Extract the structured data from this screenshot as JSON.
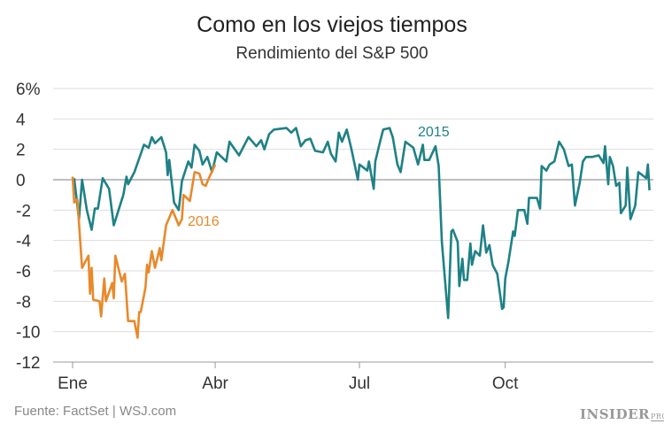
{
  "chart_data": {
    "type": "line",
    "title": "Como en los viejos tiempos",
    "subtitle": "Rendimiento del S&P 500",
    "xlabel": "",
    "ylabel": "",
    "ylim": [
      -12,
      6
    ],
    "yticks": [
      6,
      4,
      2,
      0,
      -2,
      -4,
      -6,
      -8,
      -10,
      -12
    ],
    "ytick_labels": [
      "6%",
      "4",
      "2",
      "0",
      "-2",
      "-4",
      "-6",
      "-8",
      "-10",
      "-12"
    ],
    "xticks": [
      "Ene",
      "Abr",
      "Jul",
      "Oct"
    ],
    "x_axis": "month of year (Jan–Dec)",
    "grid": true,
    "series": [
      {
        "name": "2015",
        "color": "#1e8186",
        "points": [
          [
            "2015-01-02",
            0.1
          ],
          [
            "2015-01-05",
            -2.6
          ],
          [
            "2015-01-07",
            0
          ],
          [
            "2015-01-10",
            -2
          ],
          [
            "2015-01-13",
            -3.3
          ],
          [
            "2015-01-15",
            -1.9
          ],
          [
            "2015-01-17",
            -1.9
          ],
          [
            "2015-01-20",
            0.1
          ],
          [
            "2015-01-24",
            -0.6
          ],
          [
            "2015-01-27",
            -3
          ],
          [
            "2015-01-30",
            -2
          ],
          [
            "2015-02-02",
            -1
          ],
          [
            "2015-02-04",
            0.2
          ],
          [
            "2015-02-05",
            -0.3
          ],
          [
            "2015-02-09",
            0.5
          ],
          [
            "2015-02-12",
            1.4
          ],
          [
            "2015-02-15",
            2.3
          ],
          [
            "2015-02-18",
            2.1
          ],
          [
            "2015-02-20",
            2.8
          ],
          [
            "2015-02-22",
            2.4
          ],
          [
            "2015-02-26",
            2.8
          ],
          [
            "2015-03-01",
            1.8
          ],
          [
            "2015-03-02",
            0.3
          ],
          [
            "2015-03-03",
            1.3
          ],
          [
            "2015-03-06",
            -1.5
          ],
          [
            "2015-03-09",
            -2.0
          ],
          [
            "2015-03-11",
            -0.1
          ],
          [
            "2015-03-15",
            1.2
          ],
          [
            "2015-03-17",
            0.8
          ],
          [
            "2015-03-19",
            2.3
          ],
          [
            "2015-03-22",
            1.9
          ],
          [
            "2015-03-24",
            1.0
          ],
          [
            "2015-03-27",
            1.5
          ],
          [
            "2015-03-30",
            0.5
          ],
          [
            "2015-04-02",
            1.8
          ],
          [
            "2015-04-08",
            1.2
          ],
          [
            "2015-04-10",
            2.5
          ],
          [
            "2015-04-16",
            1.6
          ],
          [
            "2015-04-22",
            2.8
          ],
          [
            "2015-04-27",
            2.2
          ],
          [
            "2015-04-30",
            2.6
          ],
          [
            "2015-05-02",
            2.0
          ],
          [
            "2015-05-05",
            3.0
          ],
          [
            "2015-05-08",
            3.3
          ],
          [
            "2015-05-16",
            3.4
          ],
          [
            "2015-05-19",
            3.1
          ],
          [
            "2015-05-22",
            3.4
          ],
          [
            "2015-05-25",
            2.2
          ],
          [
            "2015-05-28",
            2.6
          ],
          [
            "2015-05-31",
            2.7
          ],
          [
            "2015-06-03",
            1.9
          ],
          [
            "2015-06-08",
            1.8
          ],
          [
            "2015-06-11",
            2.5
          ],
          [
            "2015-06-13",
            1.7
          ],
          [
            "2015-06-16",
            1.2
          ],
          [
            "2015-06-18",
            3.1
          ],
          [
            "2015-06-20",
            2.5
          ],
          [
            "2015-06-23",
            3.3
          ],
          [
            "2015-06-26",
            2.0
          ],
          [
            "2015-06-30",
            0
          ],
          [
            "2015-07-01",
            1.0
          ],
          [
            "2015-07-06",
            0.6
          ],
          [
            "2015-07-07",
            1.2
          ],
          [
            "2015-07-10",
            -0.6
          ],
          [
            "2015-07-11",
            1.2
          ],
          [
            "2015-07-14",
            2.5
          ],
          [
            "2015-07-16",
            3.3
          ],
          [
            "2015-07-20",
            3.4
          ],
          [
            "2015-07-22",
            2.8
          ],
          [
            "2015-07-25",
            1.0
          ],
          [
            "2015-07-27",
            0.5
          ],
          [
            "2015-07-30",
            2.5
          ],
          [
            "2015-08-04",
            2.1
          ],
          [
            "2015-08-07",
            1.0
          ],
          [
            "2015-08-10",
            2.3
          ],
          [
            "2015-08-11",
            1.3
          ],
          [
            "2015-08-14",
            1.3
          ],
          [
            "2015-08-18",
            2.2
          ],
          [
            "2015-08-20",
            0.9
          ],
          [
            "2015-08-22",
            -4.1
          ],
          [
            "2015-08-26",
            -9.1
          ],
          [
            "2015-08-28",
            -3.4
          ],
          [
            "2015-08-29",
            -3.3
          ],
          [
            "2015-09-01",
            -4.1
          ],
          [
            "2015-09-02",
            -7.0
          ],
          [
            "2015-09-04",
            -5.2
          ],
          [
            "2015-09-05",
            -6.6
          ],
          [
            "2015-09-07",
            -6.6
          ],
          [
            "2015-09-09",
            -4.2
          ],
          [
            "2015-09-10",
            -5.6
          ],
          [
            "2015-09-12",
            -4.7
          ],
          [
            "2015-09-15",
            -5.0
          ],
          [
            "2015-09-17",
            -3.0
          ],
          [
            "2015-09-19",
            -4.8
          ],
          [
            "2015-09-21",
            -4.3
          ],
          [
            "2015-09-23",
            -5.6
          ],
          [
            "2015-09-26",
            -6.2
          ],
          [
            "2015-09-29",
            -8.5
          ],
          [
            "2015-09-30",
            -8.4
          ],
          [
            "2015-10-01",
            -6.5
          ],
          [
            "2015-10-03",
            -5.4
          ],
          [
            "2015-10-06",
            -3.4
          ],
          [
            "2015-10-07",
            -3.7
          ],
          [
            "2015-10-09",
            -2.0
          ],
          [
            "2015-10-13",
            -2.0
          ],
          [
            "2015-10-15",
            -2.9
          ],
          [
            "2015-10-16",
            -1.2
          ],
          [
            "2015-10-21",
            -1.2
          ],
          [
            "2015-10-23",
            -1.9
          ],
          [
            "2015-10-24",
            0.9
          ],
          [
            "2015-10-27",
            0.6
          ],
          [
            "2015-10-29",
            1.0
          ],
          [
            "2015-11-01",
            1.2
          ],
          [
            "2015-11-04",
            2.5
          ],
          [
            "2015-11-07",
            2.0
          ],
          [
            "2015-11-10",
            0.9
          ],
          [
            "2015-11-12",
            1.0
          ],
          [
            "2015-11-14",
            -1.7
          ],
          [
            "2015-11-17",
            -0.2
          ],
          [
            "2015-11-19",
            1.2
          ],
          [
            "2015-11-21",
            1.5
          ],
          [
            "2015-11-25",
            1.5
          ],
          [
            "2015-11-29",
            1.6
          ],
          [
            "2015-12-02",
            1.1
          ],
          [
            "2015-12-03",
            2.2
          ],
          [
            "2015-12-05",
            -0.3
          ],
          [
            "2015-12-06",
            1.5
          ],
          [
            "2015-12-08",
            0.9
          ],
          [
            "2015-12-10",
            -0.4
          ],
          [
            "2015-12-12",
            -0.2
          ],
          [
            "2015-12-13",
            -2.2
          ],
          [
            "2015-12-16",
            -1.7
          ],
          [
            "2015-12-17",
            0.8
          ],
          [
            "2015-12-19",
            -2.6
          ],
          [
            "2015-12-22",
            -1.7
          ],
          [
            "2015-12-24",
            0.5
          ],
          [
            "2015-12-29",
            0.1
          ],
          [
            "2015-12-30",
            1.0
          ],
          [
            "2015-12-31",
            -0.7
          ]
        ]
      },
      {
        "name": "2016",
        "color": "#e8892a",
        "points": [
          [
            "2016-01-01",
            0.2
          ],
          [
            "2016-01-02",
            -1.5
          ],
          [
            "2016-01-04",
            -1.3
          ],
          [
            "2016-01-07",
            -5.8
          ],
          [
            "2016-01-11",
            -5.0
          ],
          [
            "2016-01-12",
            -7.5
          ],
          [
            "2016-01-13",
            -5.8
          ],
          [
            "2016-01-14",
            -7.9
          ],
          [
            "2016-01-18",
            -8.0
          ],
          [
            "2016-01-19",
            -9.0
          ],
          [
            "2016-01-21",
            -6.5
          ],
          [
            "2016-01-22",
            -8.0
          ],
          [
            "2016-01-26",
            -6.8
          ],
          [
            "2016-01-27",
            -7.8
          ],
          [
            "2016-01-28",
            -5.0
          ],
          [
            "2016-02-01",
            -6.7
          ],
          [
            "2016-02-03",
            -6.2
          ],
          [
            "2016-02-05",
            -9.3
          ],
          [
            "2016-02-09",
            -9.3
          ],
          [
            "2016-02-11",
            -10.4
          ],
          [
            "2016-02-12",
            -8.7
          ],
          [
            "2016-02-13",
            -8.7
          ],
          [
            "2016-02-16",
            -7.1
          ],
          [
            "2016-02-17",
            -5.6
          ],
          [
            "2016-02-18",
            -6.1
          ],
          [
            "2016-02-20",
            -4.7
          ],
          [
            "2016-02-22",
            -5.8
          ],
          [
            "2016-02-25",
            -4.5
          ],
          [
            "2016-02-26",
            -5.3
          ],
          [
            "2016-02-29",
            -3.0
          ],
          [
            "2016-03-04",
            -2.0
          ],
          [
            "2016-03-08",
            -3.0
          ],
          [
            "2016-03-10",
            -2.6
          ],
          [
            "2016-03-11",
            -1.0
          ],
          [
            "2016-03-15",
            -1.4
          ],
          [
            "2016-03-18",
            0.5
          ],
          [
            "2016-03-21",
            0.4
          ],
          [
            "2016-03-23",
            -0.3
          ],
          [
            "2016-03-25",
            -0.4
          ],
          [
            "2016-03-27",
            0.1
          ],
          [
            "2016-03-31",
            1.0
          ]
        ]
      }
    ],
    "legend": "inline labels"
  },
  "footer": {
    "source": "Fuente: FactSet | WSJ.com",
    "logo": "INSIDER",
    "logo_suffix": "PRO"
  }
}
